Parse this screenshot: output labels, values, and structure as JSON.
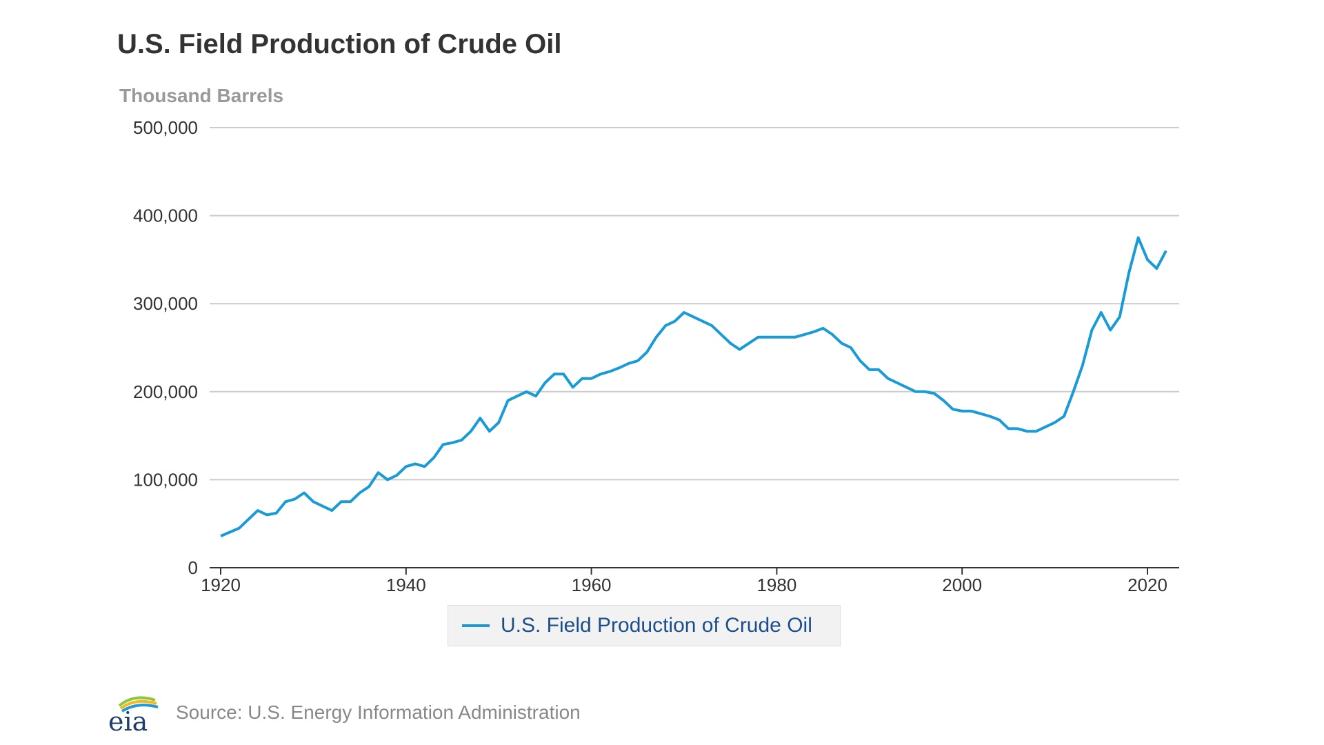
{
  "colors": {
    "series": "#1a9bd7",
    "grid": "#cccccc",
    "axis": "#333333",
    "title": "#333333",
    "unit": "#999999",
    "legend_text": "#1c4f8a"
  },
  "logo": {
    "text": "eia",
    "icon": "eia-logo"
  },
  "source": "Source: U.S. Energy Information Administration",
  "chart_data": {
    "type": "line",
    "title": "U.S. Field Production of Crude Oil",
    "unit_label": "Thousand Barrels",
    "xlabel": "",
    "ylabel": "",
    "xlim": [
      1920,
      2023
    ],
    "ylim": [
      0,
      500000
    ],
    "x_ticks": [
      1920,
      1940,
      1960,
      1980,
      2000,
      2020
    ],
    "y_ticks": [
      0,
      100000,
      200000,
      300000,
      400000,
      500000
    ],
    "y_tick_labels": [
      "0",
      "100,000",
      "200,000",
      "300,000",
      "400,000",
      "500,000"
    ],
    "grid": true,
    "legend_position": "bottom",
    "series": [
      {
        "name": "U.S. Field Production of Crude Oil",
        "x": [
          1920,
          1922,
          1923,
          1924,
          1925,
          1926,
          1927,
          1928,
          1929,
          1930,
          1931,
          1932,
          1933,
          1934,
          1935,
          1936,
          1937,
          1938,
          1939,
          1940,
          1941,
          1942,
          1943,
          1944,
          1945,
          1946,
          1947,
          1948,
          1949,
          1950,
          1951,
          1952,
          1953,
          1954,
          1955,
          1956,
          1957,
          1958,
          1959,
          1960,
          1961,
          1962,
          1963,
          1964,
          1965,
          1966,
          1967,
          1968,
          1969,
          1970,
          1971,
          1972,
          1973,
          1974,
          1975,
          1976,
          1977,
          1978,
          1979,
          1980,
          1981,
          1982,
          1983,
          1984,
          1985,
          1986,
          1987,
          1988,
          1989,
          1990,
          1991,
          1992,
          1993,
          1994,
          1995,
          1996,
          1997,
          1998,
          1999,
          2000,
          2001,
          2002,
          2003,
          2004,
          2005,
          2006,
          2007,
          2008,
          2009,
          2010,
          2011,
          2012,
          2013,
          2014,
          2015,
          2016,
          2017,
          2018,
          2019,
          2020,
          2021,
          2022
        ],
        "values": [
          36000,
          45000,
          55000,
          65000,
          60000,
          62000,
          75000,
          78000,
          85000,
          75000,
          70000,
          65000,
          75000,
          75000,
          85000,
          92000,
          108000,
          100000,
          105000,
          115000,
          118000,
          115000,
          125000,
          140000,
          142000,
          145000,
          155000,
          170000,
          155000,
          165000,
          190000,
          195000,
          200000,
          195000,
          210000,
          220000,
          220000,
          205000,
          215000,
          215000,
          220000,
          223000,
          227000,
          232000,
          235000,
          245000,
          262000,
          275000,
          280000,
          290000,
          285000,
          280000,
          275000,
          265000,
          255000,
          248000,
          255000,
          262000,
          262000,
          262000,
          262000,
          262000,
          265000,
          268000,
          272000,
          265000,
          255000,
          250000,
          235000,
          225000,
          225000,
          215000,
          210000,
          205000,
          200000,
          200000,
          198000,
          190000,
          180000,
          178000,
          178000,
          175000,
          172000,
          168000,
          158000,
          158000,
          155000,
          155000,
          160000,
          165000,
          172000,
          200000,
          230000,
          270000,
          290000,
          270000,
          285000,
          335000,
          375000,
          350000,
          340000,
          360000
        ]
      }
    ]
  }
}
